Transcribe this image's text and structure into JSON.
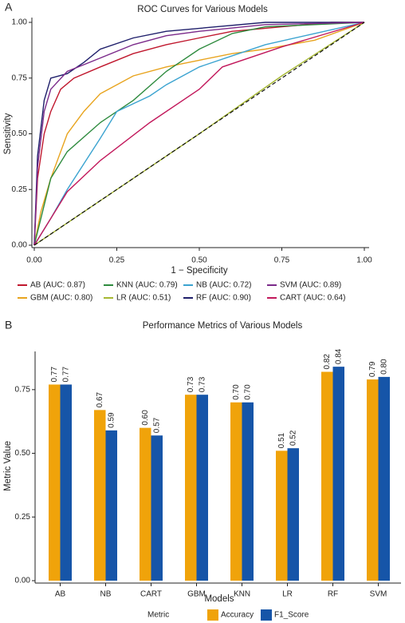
{
  "chart_data": [
    {
      "type": "line",
      "panel_label": "A",
      "title": "ROC Curves for Various Models",
      "x_label": "1 − Specificity",
      "y_label": "Sensitivity",
      "xlim": [
        0,
        1
      ],
      "ylim": [
        0,
        1
      ],
      "xticks": [
        {
          "value": 0,
          "label": "0.00"
        },
        {
          "value": 0.25,
          "label": "0.25"
        },
        {
          "value": 0.5,
          "label": "0.50"
        },
        {
          "value": 0.75,
          "label": "0.75"
        },
        {
          "value": 1,
          "label": "1.00"
        }
      ],
      "yticks": [
        {
          "value": 0,
          "label": "0.00"
        },
        {
          "value": 0.25,
          "label": "0.25"
        },
        {
          "value": 0.5,
          "label": "0.50"
        },
        {
          "value": 0.75,
          "label": "0.75"
        },
        {
          "value": 1,
          "label": "1.00"
        }
      ],
      "reference_line": true,
      "series": [
        {
          "name": "AB (AUC: 0.87)",
          "color": "#c0182e",
          "x": [
            0,
            0.01,
            0.03,
            0.05,
            0.08,
            0.12,
            0.2,
            0.3,
            0.4,
            0.5,
            0.6,
            0.75,
            0.9,
            1
          ],
          "values": [
            0,
            0.3,
            0.5,
            0.6,
            0.7,
            0.75,
            0.8,
            0.86,
            0.9,
            0.93,
            0.96,
            0.98,
            1,
            1
          ]
        },
        {
          "name": "GBM (AUC: 0.80)",
          "color": "#e8a41e",
          "x": [
            0,
            0.02,
            0.05,
            0.1,
            0.15,
            0.2,
            0.3,
            0.4,
            0.5,
            0.6,
            0.7,
            0.85,
            1
          ],
          "values": [
            0,
            0.15,
            0.3,
            0.5,
            0.6,
            0.68,
            0.76,
            0.8,
            0.83,
            0.86,
            0.88,
            0.92,
            1
          ]
        },
        {
          "name": "KNN (AUC: 0.79)",
          "color": "#2e8b3e",
          "x": [
            0,
            0.05,
            0.1,
            0.2,
            0.3,
            0.4,
            0.5,
            0.6,
            0.7,
            1
          ],
          "values": [
            0,
            0.3,
            0.42,
            0.55,
            0.65,
            0.78,
            0.88,
            0.95,
            0.98,
            1
          ]
        },
        {
          "name": "LR (AUC: 0.51)",
          "color": "#a6b832",
          "x": [
            0,
            0.25,
            0.5,
            0.75,
            1
          ],
          "values": [
            0,
            0.25,
            0.5,
            0.76,
            1
          ]
        },
        {
          "name": "NB (AUC: 0.72)",
          "color": "#3ba3d0",
          "x": [
            0,
            0.05,
            0.1,
            0.2,
            0.25,
            0.35,
            0.4,
            0.5,
            0.6,
            0.7,
            0.85,
            1
          ],
          "values": [
            0,
            0.12,
            0.25,
            0.48,
            0.6,
            0.67,
            0.72,
            0.8,
            0.85,
            0.9,
            0.95,
            1
          ]
        },
        {
          "name": "RF (AUC: 0.90)",
          "color": "#1f1f6b",
          "x": [
            0,
            0.01,
            0.03,
            0.05,
            0.1,
            0.15,
            0.2,
            0.3,
            0.4,
            0.55,
            0.7,
            1
          ],
          "values": [
            0,
            0.4,
            0.65,
            0.75,
            0.77,
            0.82,
            0.88,
            0.93,
            0.96,
            0.98,
            1,
            1
          ]
        },
        {
          "name": "SVM (AUC: 0.89)",
          "color": "#7b2a8a",
          "x": [
            0,
            0.01,
            0.03,
            0.05,
            0.1,
            0.2,
            0.3,
            0.4,
            0.5,
            0.7,
            1
          ],
          "values": [
            0,
            0.35,
            0.6,
            0.7,
            0.78,
            0.84,
            0.9,
            0.94,
            0.96,
            0.99,
            1
          ]
        },
        {
          "name": "CART (AUC: 0.64)",
          "color": "#c2185b",
          "x": [
            0,
            0.1,
            0.2,
            0.35,
            0.5,
            0.57,
            0.75,
            1
          ],
          "values": [
            0,
            0.24,
            0.38,
            0.55,
            0.7,
            0.8,
            0.89,
            1
          ]
        }
      ]
    },
    {
      "type": "bar",
      "panel_label": "B",
      "title": "Performance Metrics of Various Models",
      "x_label": "Models",
      "y_label": "Metric Value",
      "legend_title": "Metric",
      "categories": [
        "AB",
        "NB",
        "CART",
        "GBM",
        "KNN",
        "LR",
        "RF",
        "SVM"
      ],
      "ylim": [
        0,
        0.9
      ],
      "yticks": [
        {
          "value": 0,
          "label": "0.00"
        },
        {
          "value": 0.25,
          "label": "0.25"
        },
        {
          "value": 0.5,
          "label": "0.50"
        },
        {
          "value": 0.75,
          "label": "0.75"
        }
      ],
      "series": [
        {
          "name": "Accuracy",
          "color": "#f0a30a",
          "values": [
            0.77,
            0.67,
            0.6,
            0.73,
            0.7,
            0.51,
            0.82,
            0.79
          ],
          "value_labels": [
            "0.77",
            "0.67",
            "0.60",
            "0.73",
            "0.70",
            "0.51",
            "0.82",
            "0.79"
          ]
        },
        {
          "name": "F1_Score",
          "color": "#1655a8",
          "values": [
            0.77,
            0.59,
            0.57,
            0.73,
            0.7,
            0.52,
            0.84,
            0.8
          ],
          "value_labels": [
            "0.77",
            "0.59",
            "0.57",
            "0.73",
            "0.70",
            "0.52",
            "0.84",
            "0.80"
          ]
        }
      ]
    }
  ]
}
